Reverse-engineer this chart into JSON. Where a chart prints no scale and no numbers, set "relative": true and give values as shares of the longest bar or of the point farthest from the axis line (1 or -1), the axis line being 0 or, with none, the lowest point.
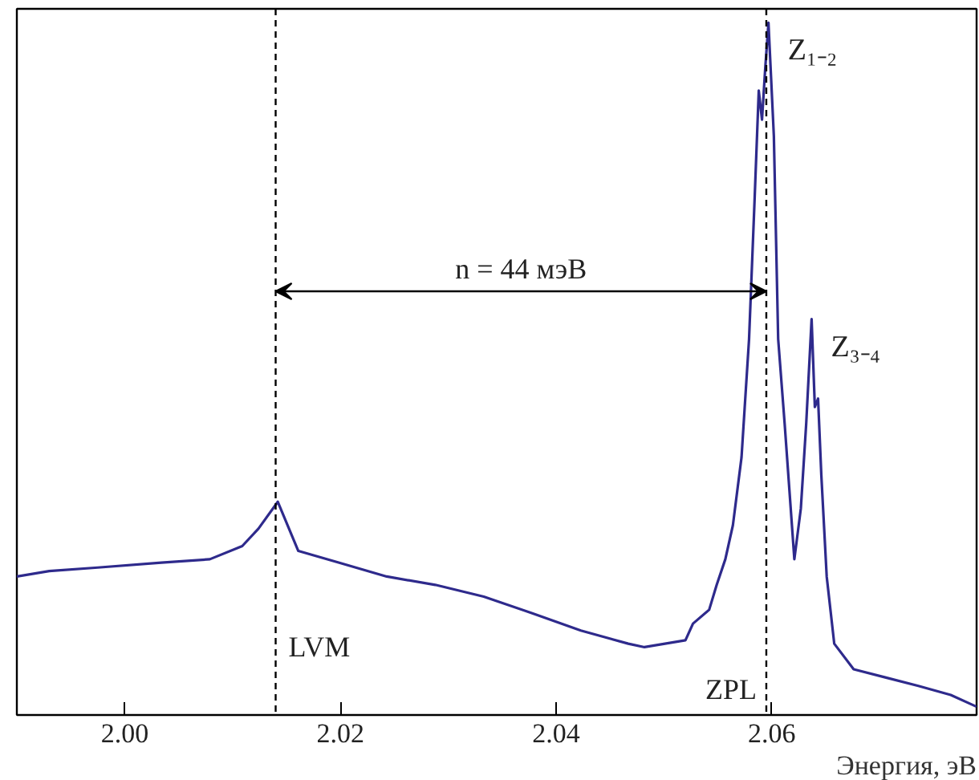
{
  "chart_data": {
    "type": "line",
    "relative": true,
    "xlabel": "Энергия, эВ",
    "tick_labels": "x",
    "grid": false,
    "xlim": [
      1.99,
      2.079
    ],
    "xticks": [
      {
        "value": 2.0,
        "label": "2.00"
      },
      {
        "value": 2.02,
        "label": "2.02"
      },
      {
        "value": 2.04,
        "label": "2.04"
      },
      {
        "value": 2.06,
        "label": "2.06"
      }
    ],
    "series": [
      {
        "color": "#2e2a8c",
        "x": [
          1.99,
          1.993,
          1.9975,
          2.0034,
          2.0079,
          2.0109,
          2.0124,
          2.0142,
          2.0161,
          2.0199,
          2.0243,
          2.0288,
          2.0333,
          2.0378,
          2.0423,
          2.0467,
          2.0482,
          2.052,
          2.0527,
          2.0542,
          2.0549,
          2.0557,
          2.0564,
          2.0572,
          2.0579,
          2.0584,
          2.0588,
          2.0591,
          2.0594,
          2.0597,
          2.0602,
          2.0606,
          2.0612,
          2.0621,
          2.0627,
          2.0632,
          2.0637,
          2.064,
          2.0643,
          2.0646,
          2.0651,
          2.0658,
          2.0676,
          2.0706,
          2.0736,
          2.0766,
          2.079
        ],
        "values": [
          0.2,
          0.208,
          0.213,
          0.22,
          0.225,
          0.244,
          0.269,
          0.308,
          0.237,
          0.22,
          0.2,
          0.188,
          0.171,
          0.147,
          0.122,
          0.103,
          0.098,
          0.108,
          0.132,
          0.152,
          0.188,
          0.225,
          0.274,
          0.372,
          0.543,
          0.739,
          0.902,
          0.86,
          0.934,
          1.0,
          0.836,
          0.543,
          0.421,
          0.225,
          0.298,
          0.421,
          0.572,
          0.445,
          0.457,
          0.347,
          0.2,
          0.103,
          0.066,
          0.054,
          0.042,
          0.029,
          0.012
        ]
      }
    ],
    "ref_lines": [
      {
        "axis": "x",
        "value": 2.014,
        "label": "LVM",
        "line_style": "dashed",
        "color": "#000000"
      },
      {
        "axis": "x",
        "value": 2.0595,
        "label": "ZPL",
        "line_style": "dashed",
        "color": "#000000"
      }
    ],
    "annotations": [
      "n = 44 мэВ",
      {
        "text": "Z₁₋₂",
        "x": 2.0597,
        "y": 1.0
      },
      {
        "text": "Z₃₋₄",
        "x": 2.0637,
        "y": 0.572
      }
    ]
  }
}
